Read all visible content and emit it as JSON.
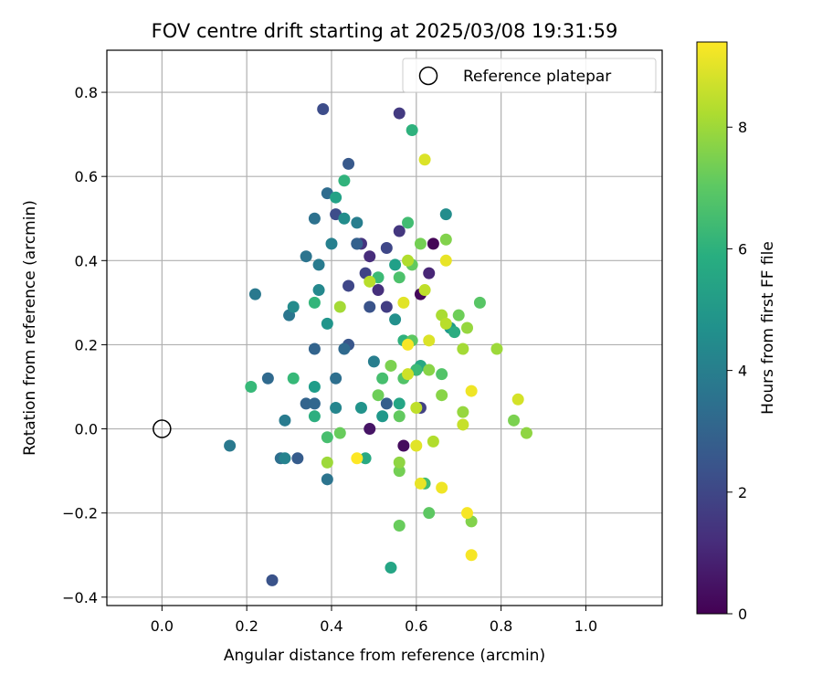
{
  "chart_data": {
    "type": "scatter",
    "title": "FOV centre drift starting at 2025/03/08 19:31:59",
    "xlabel": "Angular distance from reference (arcmin)",
    "ylabel": "Rotation from reference (arcmin)",
    "xlim": [
      -0.13,
      1.18
    ],
    "ylim": [
      -0.42,
      0.9
    ],
    "xticks": [
      0.0,
      0.2,
      0.4,
      0.6,
      0.8,
      1.0
    ],
    "yticks": [
      -0.4,
      -0.2,
      0.0,
      0.2,
      0.4,
      0.6,
      0.8
    ],
    "xtick_labels": [
      "0.0",
      "0.2",
      "0.4",
      "0.6",
      "0.8",
      "1.0"
    ],
    "ytick_labels": [
      "−0.4",
      "−0.2",
      "0.0",
      "0.2",
      "0.4",
      "0.6",
      "0.8"
    ],
    "grid": true,
    "legend": {
      "placement": "top-right",
      "entries": [
        {
          "label": "Reference platepar",
          "marker": "open-circle"
        }
      ]
    },
    "reference_point": {
      "x": 0.0,
      "y": 0.0
    },
    "colorbar": {
      "label": "Hours from first FF file",
      "colormap": "viridis",
      "range": [
        0,
        9.4
      ],
      "ticks": [
        0,
        2,
        4,
        6,
        8
      ],
      "tick_labels": [
        "0",
        "2",
        "4",
        "6",
        "8"
      ]
    },
    "points": [
      {
        "x": 0.64,
        "y": 0.44,
        "h": 0.1
      },
      {
        "x": 0.61,
        "y": 0.32,
        "h": 0.2
      },
      {
        "x": 0.57,
        "y": -0.04,
        "h": 0.3
      },
      {
        "x": 0.49,
        "y": 0.0,
        "h": 0.5
      },
      {
        "x": 0.6,
        "y": 0.14,
        "h": 0.6
      },
      {
        "x": 0.63,
        "y": 0.37,
        "h": 1.0
      },
      {
        "x": 0.49,
        "y": 0.41,
        "h": 1.2
      },
      {
        "x": 0.51,
        "y": 0.33,
        "h": 1.3
      },
      {
        "x": 0.47,
        "y": 0.44,
        "h": 1.4
      },
      {
        "x": 0.56,
        "y": 0.47,
        "h": 1.5
      },
      {
        "x": 0.56,
        "y": 0.75,
        "h": 1.6
      },
      {
        "x": 0.53,
        "y": 0.29,
        "h": 1.7
      },
      {
        "x": 0.61,
        "y": 0.05,
        "h": 1.8
      },
      {
        "x": 0.46,
        "y": 0.44,
        "h": 1.8
      },
      {
        "x": 0.48,
        "y": 0.37,
        "h": 1.9
      },
      {
        "x": 0.44,
        "y": 0.34,
        "h": 2.0
      },
      {
        "x": 0.53,
        "y": 0.43,
        "h": 2.0
      },
      {
        "x": 0.38,
        "y": 0.76,
        "h": 2.2
      },
      {
        "x": 0.41,
        "y": 0.51,
        "h": 2.2
      },
      {
        "x": 0.26,
        "y": -0.36,
        "h": 2.4
      },
      {
        "x": 0.49,
        "y": 0.29,
        "h": 2.4
      },
      {
        "x": 0.44,
        "y": 0.2,
        "h": 2.5
      },
      {
        "x": 0.44,
        "y": 0.63,
        "h": 2.6
      },
      {
        "x": 0.32,
        "y": -0.07,
        "h": 2.7
      },
      {
        "x": 0.53,
        "y": 0.06,
        "h": 2.8
      },
      {
        "x": 0.46,
        "y": 0.44,
        "h": 2.9
      },
      {
        "x": 0.36,
        "y": 0.19,
        "h": 3.0
      },
      {
        "x": 0.34,
        "y": 0.06,
        "h": 3.0
      },
      {
        "x": 0.36,
        "y": 0.06,
        "h": 3.1
      },
      {
        "x": 0.25,
        "y": 0.12,
        "h": 3.2
      },
      {
        "x": 0.43,
        "y": 0.19,
        "h": 3.2
      },
      {
        "x": 0.39,
        "y": 0.56,
        "h": 3.3
      },
      {
        "x": 0.28,
        "y": -0.07,
        "h": 3.4
      },
      {
        "x": 0.41,
        "y": 0.12,
        "h": 3.4
      },
      {
        "x": 0.36,
        "y": 0.5,
        "h": 3.5
      },
      {
        "x": 0.39,
        "y": -0.12,
        "h": 3.6
      },
      {
        "x": 0.34,
        "y": 0.41,
        "h": 3.6
      },
      {
        "x": 0.3,
        "y": 0.27,
        "h": 3.7
      },
      {
        "x": 0.22,
        "y": 0.32,
        "h": 3.8
      },
      {
        "x": 0.16,
        "y": -0.04,
        "h": 3.8
      },
      {
        "x": 0.29,
        "y": 0.02,
        "h": 3.9
      },
      {
        "x": 0.37,
        "y": 0.39,
        "h": 3.9
      },
      {
        "x": 0.5,
        "y": 0.16,
        "h": 4.0
      },
      {
        "x": 0.46,
        "y": 0.49,
        "h": 4.0
      },
      {
        "x": 0.4,
        "y": 0.44,
        "h": 4.1
      },
      {
        "x": 0.29,
        "y": -0.07,
        "h": 4.2
      },
      {
        "x": 0.41,
        "y": 0.05,
        "h": 4.3
      },
      {
        "x": 0.37,
        "y": 0.33,
        "h": 4.4
      },
      {
        "x": 0.31,
        "y": 0.29,
        "h": 4.5
      },
      {
        "x": 0.43,
        "y": 0.5,
        "h": 4.6
      },
      {
        "x": 0.67,
        "y": 0.51,
        "h": 4.6
      },
      {
        "x": 0.55,
        "y": 0.26,
        "h": 4.7
      },
      {
        "x": 0.47,
        "y": 0.05,
        "h": 4.8
      },
      {
        "x": 0.39,
        "y": 0.25,
        "h": 4.9
      },
      {
        "x": 0.52,
        "y": 0.03,
        "h": 5.0
      },
      {
        "x": 0.68,
        "y": 0.24,
        "h": 5.1
      },
      {
        "x": 0.36,
        "y": 0.1,
        "h": 5.2
      },
      {
        "x": 0.55,
        "y": 0.39,
        "h": 5.3
      },
      {
        "x": 0.41,
        "y": 0.55,
        "h": 5.4
      },
      {
        "x": 0.56,
        "y": 0.06,
        "h": 5.5
      },
      {
        "x": 0.54,
        "y": -0.33,
        "h": 5.5
      },
      {
        "x": 0.61,
        "y": 0.15,
        "h": 5.6
      },
      {
        "x": 0.48,
        "y": -0.07,
        "h": 5.7
      },
      {
        "x": 0.69,
        "y": 0.23,
        "h": 5.8
      },
      {
        "x": 0.36,
        "y": 0.03,
        "h": 5.9
      },
      {
        "x": 0.57,
        "y": 0.21,
        "h": 6.0
      },
      {
        "x": 0.59,
        "y": 0.71,
        "h": 6.0
      },
      {
        "x": 0.43,
        "y": 0.59,
        "h": 6.1
      },
      {
        "x": 0.36,
        "y": 0.3,
        "h": 6.2
      },
      {
        "x": 0.21,
        "y": 0.1,
        "h": 6.3
      },
      {
        "x": 0.31,
        "y": 0.12,
        "h": 6.3
      },
      {
        "x": 0.51,
        "y": 0.36,
        "h": 6.4
      },
      {
        "x": 0.6,
        "y": 0.14,
        "h": 6.4
      },
      {
        "x": 0.62,
        "y": -0.13,
        "h": 6.5
      },
      {
        "x": 0.58,
        "y": 0.49,
        "h": 6.5
      },
      {
        "x": 0.39,
        "y": -0.02,
        "h": 6.6
      },
      {
        "x": 0.52,
        "y": 0.12,
        "h": 6.6
      },
      {
        "x": 0.56,
        "y": 0.36,
        "h": 6.7
      },
      {
        "x": 0.66,
        "y": 0.13,
        "h": 6.8
      },
      {
        "x": 0.57,
        "y": 0.12,
        "h": 6.8
      },
      {
        "x": 0.75,
        "y": 0.3,
        "h": 6.9
      },
      {
        "x": 0.59,
        "y": 0.21,
        "h": 7.0
      },
      {
        "x": 0.63,
        "y": -0.2,
        "h": 7.0
      },
      {
        "x": 0.59,
        "y": 0.39,
        "h": 7.1
      },
      {
        "x": 0.56,
        "y": 0.03,
        "h": 7.1
      },
      {
        "x": 0.42,
        "y": -0.01,
        "h": 7.2
      },
      {
        "x": 0.56,
        "y": -0.23,
        "h": 7.2
      },
      {
        "x": 0.7,
        "y": 0.27,
        "h": 7.3
      },
      {
        "x": 0.51,
        "y": 0.08,
        "h": 7.3
      },
      {
        "x": 0.56,
        "y": -0.1,
        "h": 7.4
      },
      {
        "x": 0.61,
        "y": 0.44,
        "h": 7.4
      },
      {
        "x": 0.83,
        "y": 0.02,
        "h": 7.5
      },
      {
        "x": 0.54,
        "y": 0.15,
        "h": 7.5
      },
      {
        "x": 0.67,
        "y": 0.45,
        "h": 7.6
      },
      {
        "x": 0.73,
        "y": -0.22,
        "h": 7.6
      },
      {
        "x": 0.63,
        "y": 0.14,
        "h": 7.7
      },
      {
        "x": 0.66,
        "y": 0.08,
        "h": 7.7
      },
      {
        "x": 0.86,
        "y": -0.01,
        "h": 7.8
      },
      {
        "x": 0.56,
        "y": -0.08,
        "h": 7.8
      },
      {
        "x": 0.71,
        "y": 0.04,
        "h": 7.9
      },
      {
        "x": 0.72,
        "y": 0.24,
        "h": 7.9
      },
      {
        "x": 0.79,
        "y": 0.19,
        "h": 8.0
      },
      {
        "x": 0.39,
        "y": -0.08,
        "h": 8.0
      },
      {
        "x": 0.42,
        "y": 0.29,
        "h": 8.1
      },
      {
        "x": 0.71,
        "y": 0.19,
        "h": 8.1
      },
      {
        "x": 0.66,
        "y": 0.27,
        "h": 8.2
      },
      {
        "x": 0.64,
        "y": -0.03,
        "h": 8.3
      },
      {
        "x": 0.58,
        "y": 0.4,
        "h": 8.3
      },
      {
        "x": 0.49,
        "y": 0.35,
        "h": 8.4
      },
      {
        "x": 0.67,
        "y": 0.25,
        "h": 8.4
      },
      {
        "x": 0.62,
        "y": 0.33,
        "h": 8.5
      },
      {
        "x": 0.6,
        "y": 0.05,
        "h": 8.5
      },
      {
        "x": 0.71,
        "y": 0.01,
        "h": 8.6
      },
      {
        "x": 0.58,
        "y": 0.13,
        "h": 8.7
      },
      {
        "x": 0.84,
        "y": 0.07,
        "h": 8.8
      },
      {
        "x": 0.63,
        "y": 0.21,
        "h": 8.9
      },
      {
        "x": 0.62,
        "y": 0.64,
        "h": 8.9
      },
      {
        "x": 0.57,
        "y": 0.3,
        "h": 9.0
      },
      {
        "x": 0.6,
        "y": -0.04,
        "h": 9.0
      },
      {
        "x": 0.61,
        "y": -0.13,
        "h": 9.1
      },
      {
        "x": 0.67,
        "y": 0.4,
        "h": 9.1
      },
      {
        "x": 0.66,
        "y": -0.14,
        "h": 9.2
      },
      {
        "x": 0.73,
        "y": 0.09,
        "h": 9.2
      },
      {
        "x": 0.72,
        "y": -0.2,
        "h": 9.3
      },
      {
        "x": 0.58,
        "y": 0.2,
        "h": 9.3
      },
      {
        "x": 0.73,
        "y": -0.3,
        "h": 9.3
      },
      {
        "x": 0.46,
        "y": -0.07,
        "h": 9.4
      }
    ]
  }
}
